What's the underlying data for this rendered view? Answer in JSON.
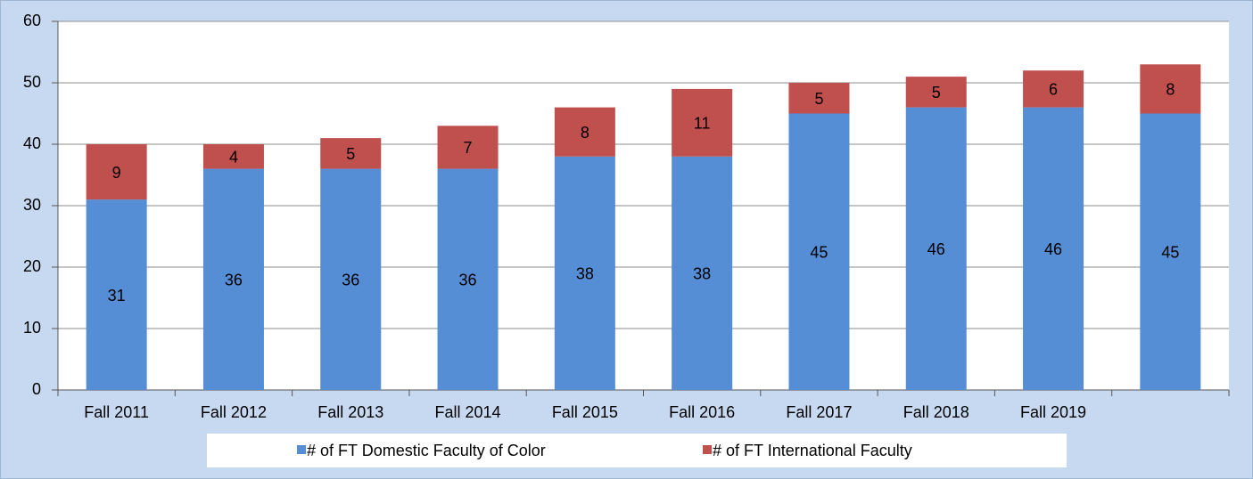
{
  "chart_data": {
    "type": "stacked_bar",
    "categories": [
      "Fall 2011",
      "Fall 2012",
      "Fall 2013",
      "Fall 2014",
      "Fall 2015",
      "Fall 2016",
      "Fall 2017",
      "Fall 2018",
      "Fall 2019",
      null
    ],
    "series": [
      {
        "name": "# of FT Domestic Faculty of Color",
        "color": "#558ed5",
        "values": [
          31,
          36,
          36,
          36,
          38,
          38,
          45,
          46,
          46,
          45
        ]
      },
      {
        "name": "# of FT International Faculty",
        "color": "#c0504d",
        "values": [
          9,
          4,
          5,
          7,
          8,
          11,
          5,
          5,
          6,
          8
        ]
      }
    ],
    "ylim": [
      0,
      60
    ],
    "yticks": [
      0,
      10,
      20,
      30,
      40,
      50,
      60
    ],
    "grid": true,
    "legend": "bottom"
  }
}
